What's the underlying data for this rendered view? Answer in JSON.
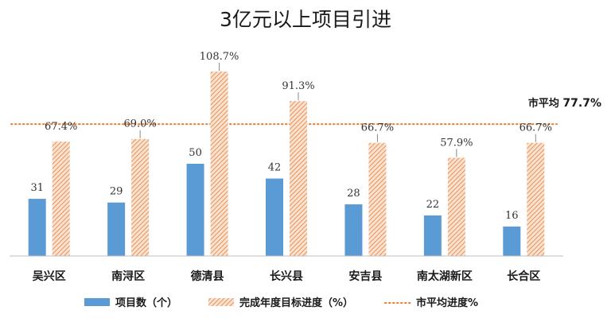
{
  "chart_data": {
    "type": "bar",
    "title": "3亿元以上项目引进",
    "categories": [
      "吴兴区",
      "南浔区",
      "德清县",
      "长兴县",
      "安吉县",
      "南太湖新区",
      "长合区"
    ],
    "series": [
      {
        "name": "项目数（个）",
        "values": [
          31,
          29,
          50,
          42,
          28,
          22,
          16
        ],
        "labels": [
          "31",
          "29",
          "50",
          "42",
          "28",
          "22",
          "16"
        ],
        "color": "#5b9bd5"
      },
      {
        "name": "完成年度目标进度（%）",
        "values": [
          67.4,
          69.0,
          108.7,
          91.3,
          66.7,
          57.9,
          66.7
        ],
        "labels": [
          "67.4%",
          "69.0%",
          "108.7%",
          "91.3%",
          "66.7%",
          "57.9%",
          "66.7%"
        ],
        "color": "#f4b183",
        "pattern": "diagonal-hatch"
      }
    ],
    "average_line": {
      "name": "市平均进度%",
      "value": 77.7,
      "label_prefix": "市平均",
      "label_value": "77.7%",
      "color": "#ed7d31",
      "style": "dotted"
    },
    "legend": "bottom",
    "grid": false
  }
}
